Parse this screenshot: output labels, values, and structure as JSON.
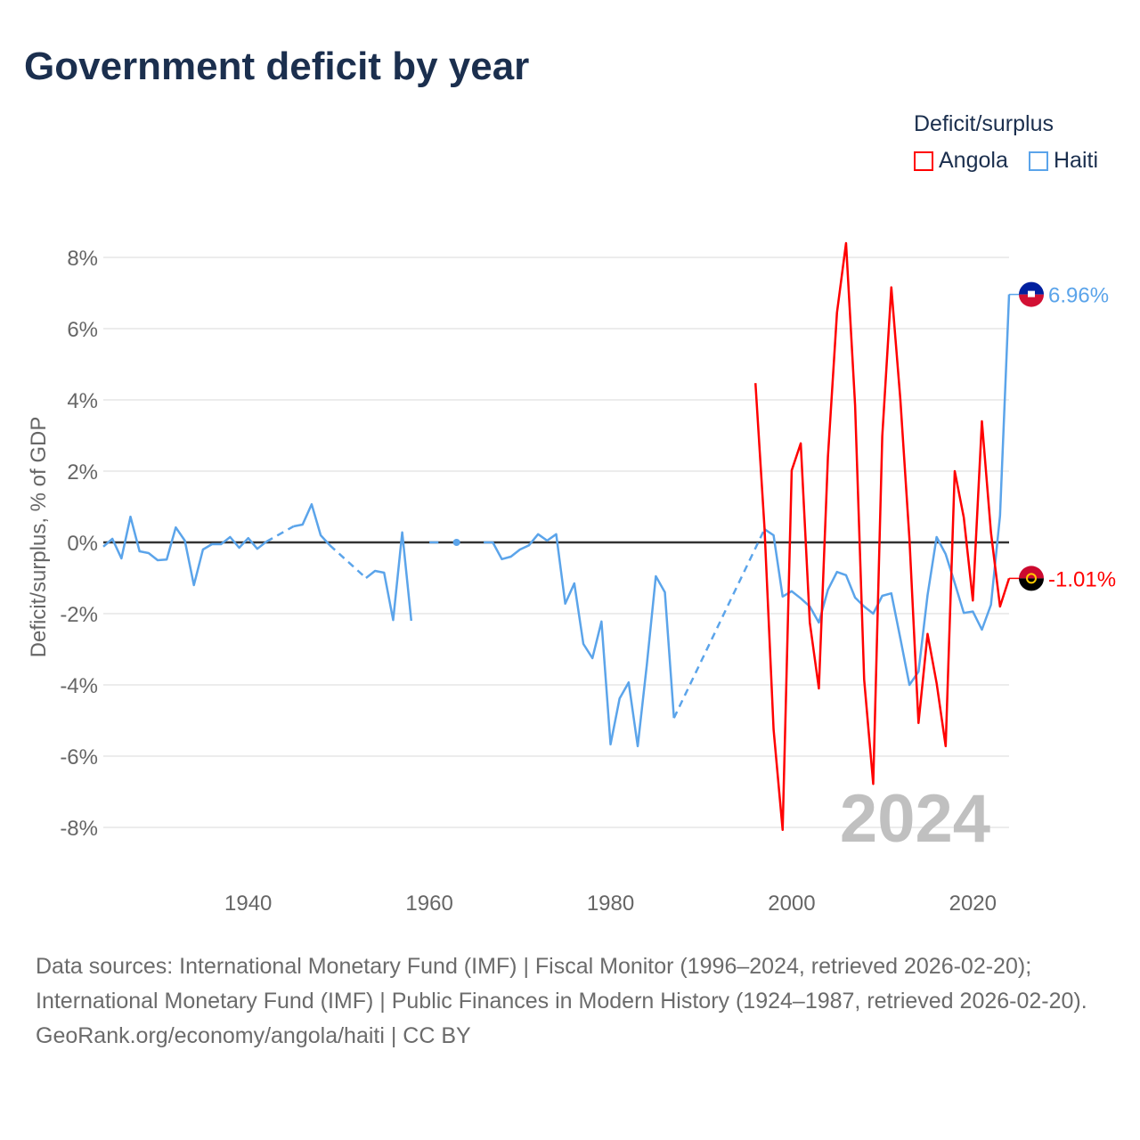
{
  "title": "Government deficit by year",
  "legend": {
    "title": "Deficit/surplus",
    "items": [
      {
        "name": "Angola",
        "color": "#ff0000"
      },
      {
        "name": "Haiti",
        "color": "#5ba4ea"
      }
    ]
  },
  "sources": {
    "line1": "Data sources: International Monetary Fund (IMF) | Fiscal Monitor (1996–2024, retrieved 2026-02-20); International Monetary Fund (IMF) | Public Finances in Modern History (1924–1987, retrieved 2026-02-20).",
    "line2": "GeoRank.org/economy/angola/haiti | CC BY"
  },
  "chart_data": {
    "type": "line",
    "title": "Government deficit by year",
    "xlabel": "",
    "ylabel": "Deficit/surplus, % of GDP",
    "xlim": [
      1924,
      2024
    ],
    "ylim": [
      -8.5,
      8.5
    ],
    "x_ticks": [
      1940,
      1960,
      1980,
      2000,
      2020
    ],
    "y_ticks": [
      -8,
      -6,
      -4,
      -2,
      0,
      2,
      4,
      6,
      8
    ],
    "y_tick_labels": [
      "-8%",
      "-6%",
      "-4%",
      "-2%",
      "0%",
      "2%",
      "4%",
      "6%",
      "8%"
    ],
    "grid": true,
    "legend_placement": "top-right",
    "year_watermark": "2024",
    "series": [
      {
        "name": "Haiti",
        "color": "#5ba4ea",
        "end_label": "6.96%",
        "dashed_gaps": [
          [
            1942,
            1945
          ],
          [
            1949,
            1953
          ],
          [
            1987,
            1997
          ]
        ],
        "points": [
          [
            1924,
            -0.12
          ],
          [
            1925,
            0.1
          ],
          [
            1926,
            -0.45
          ],
          [
            1927,
            0.72
          ],
          [
            1928,
            -0.25
          ],
          [
            1929,
            -0.3
          ],
          [
            1930,
            -0.5
          ],
          [
            1931,
            -0.48
          ],
          [
            1932,
            0.42
          ],
          [
            1933,
            0.05
          ],
          [
            1934,
            -1.2
          ],
          [
            1935,
            -0.2
          ],
          [
            1936,
            -0.05
          ],
          [
            1937,
            -0.05
          ],
          [
            1938,
            0.15
          ],
          [
            1939,
            -0.15
          ],
          [
            1940,
            0.12
          ],
          [
            1941,
            -0.18
          ],
          [
            1942,
            0.02
          ],
          [
            1945,
            0.45
          ],
          [
            1946,
            0.5
          ],
          [
            1947,
            1.07
          ],
          [
            1948,
            0.2
          ],
          [
            1949,
            -0.08
          ],
          [
            1953,
            -1.0
          ],
          [
            1954,
            -0.8
          ],
          [
            1955,
            -0.85
          ],
          [
            1956,
            -2.18
          ],
          [
            1957,
            0.28
          ],
          [
            1958,
            -2.2
          ],
          [
            1960,
            0.0
          ],
          [
            1961,
            0.0
          ],
          [
            1963,
            0.0
          ],
          [
            1966,
            0.0
          ],
          [
            1967,
            0.0
          ],
          [
            1968,
            -0.47
          ],
          [
            1969,
            -0.4
          ],
          [
            1970,
            -0.2
          ],
          [
            1971,
            -0.08
          ],
          [
            1972,
            0.23
          ],
          [
            1973,
            0.05
          ],
          [
            1974,
            0.23
          ],
          [
            1975,
            -1.72
          ],
          [
            1976,
            -1.15
          ],
          [
            1977,
            -2.85
          ],
          [
            1978,
            -3.25
          ],
          [
            1979,
            -2.22
          ],
          [
            1980,
            -5.67
          ],
          [
            1981,
            -4.38
          ],
          [
            1982,
            -3.93
          ],
          [
            1983,
            -5.72
          ],
          [
            1984,
            -3.45
          ],
          [
            1985,
            -0.95
          ],
          [
            1986,
            -1.4
          ],
          [
            1987,
            -4.93
          ],
          [
            1997,
            0.37
          ],
          [
            1998,
            0.2
          ],
          [
            1999,
            -1.52
          ],
          [
            2000,
            -1.37
          ],
          [
            2001,
            -1.57
          ],
          [
            2002,
            -1.8
          ],
          [
            2003,
            -2.25
          ],
          [
            2004,
            -1.33
          ],
          [
            2005,
            -0.83
          ],
          [
            2006,
            -0.92
          ],
          [
            2007,
            -1.55
          ],
          [
            2008,
            -1.8
          ],
          [
            2009,
            -2.0
          ],
          [
            2010,
            -1.5
          ],
          [
            2011,
            -1.43
          ],
          [
            2012,
            -2.7
          ],
          [
            2013,
            -4.0
          ],
          [
            2014,
            -3.63
          ],
          [
            2015,
            -1.48
          ],
          [
            2016,
            0.15
          ],
          [
            2017,
            -0.33
          ],
          [
            2018,
            -1.14
          ],
          [
            2019,
            -1.98
          ],
          [
            2020,
            -1.94
          ],
          [
            2021,
            -2.45
          ],
          [
            2022,
            -1.75
          ],
          [
            2023,
            0.75
          ],
          [
            2024,
            6.96
          ]
        ]
      },
      {
        "name": "Angola",
        "color": "#ff0000",
        "end_label": "-1.01%",
        "dashed_gaps": [],
        "points": [
          [
            1996,
            4.47
          ],
          [
            1997,
            0.4
          ],
          [
            1998,
            -5.25
          ],
          [
            1999,
            -8.07
          ],
          [
            2000,
            2.02
          ],
          [
            2001,
            2.78
          ],
          [
            2002,
            -2.25
          ],
          [
            2003,
            -4.1
          ],
          [
            2004,
            2.4
          ],
          [
            2005,
            6.45
          ],
          [
            2006,
            8.4
          ],
          [
            2007,
            3.85
          ],
          [
            2008,
            -3.85
          ],
          [
            2009,
            -6.78
          ],
          [
            2010,
            2.98
          ],
          [
            2011,
            7.16
          ],
          [
            2012,
            4.0
          ],
          [
            2013,
            0.1
          ],
          [
            2014,
            -5.07
          ],
          [
            2015,
            -2.57
          ],
          [
            2016,
            -3.95
          ],
          [
            2017,
            -5.72
          ],
          [
            2018,
            2.0
          ],
          [
            2019,
            0.7
          ],
          [
            2020,
            -1.63
          ],
          [
            2021,
            3.4
          ],
          [
            2022,
            0.28
          ],
          [
            2023,
            -1.8
          ],
          [
            2024,
            -1.01
          ]
        ]
      }
    ]
  }
}
